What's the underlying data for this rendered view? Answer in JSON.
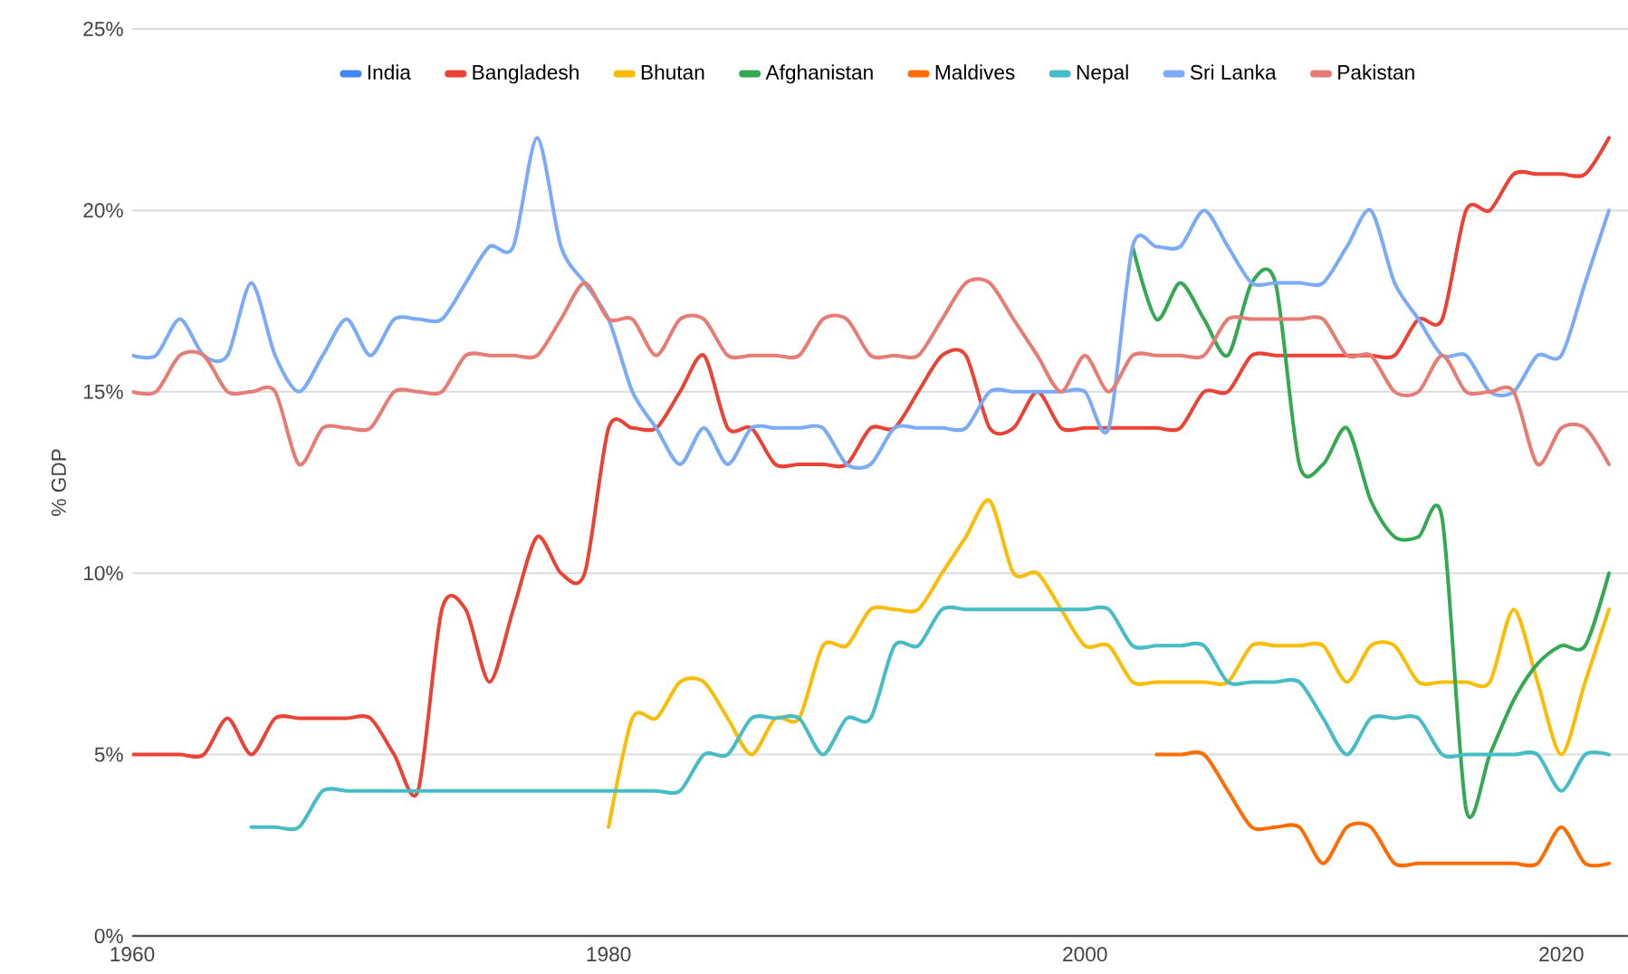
{
  "chart_data": {
    "type": "line",
    "ylabel": "% GDP",
    "x": [
      1960,
      1961,
      1962,
      1963,
      1964,
      1965,
      1966,
      1967,
      1968,
      1969,
      1970,
      1971,
      1972,
      1973,
      1974,
      1975,
      1976,
      1977,
      1978,
      1979,
      1980,
      1981,
      1982,
      1983,
      1984,
      1985,
      1986,
      1987,
      1988,
      1989,
      1990,
      1991,
      1992,
      1993,
      1994,
      1995,
      1996,
      1997,
      1998,
      1999,
      2000,
      2001,
      2002,
      2003,
      2004,
      2005,
      2006,
      2007,
      2008,
      2009,
      2010,
      2011,
      2012,
      2013,
      2014,
      2015,
      2016,
      2017,
      2018,
      2019,
      2020,
      2021,
      2022
    ],
    "xlim": [
      1960,
      2022.8
    ],
    "xticks": [
      1960,
      1980,
      2000,
      2020
    ],
    "ylim": [
      0,
      25
    ],
    "yticks": [
      {
        "value": 0,
        "label": "0%"
      },
      {
        "value": 5,
        "label": "5%"
      },
      {
        "value": 10,
        "label": "10%"
      },
      {
        "value": 15,
        "label": "15%"
      },
      {
        "value": 20,
        "label": "20%"
      },
      {
        "value": 25,
        "label": "25%"
      }
    ],
    "grid": "y",
    "legend": "top",
    "series": [
      {
        "name": "India",
        "color": "#4285f4",
        "values": [
          null,
          null,
          null,
          null,
          null,
          null,
          null,
          null,
          null,
          null,
          null,
          null,
          null,
          null,
          null,
          null,
          null,
          null,
          null,
          null,
          null,
          null,
          null,
          null,
          null,
          null,
          null,
          null,
          null,
          null,
          null,
          null,
          null,
          null,
          null,
          null,
          null,
          null,
          null,
          null,
          null,
          null,
          null,
          null,
          null,
          null,
          null,
          null,
          null,
          null,
          null,
          null,
          null,
          null,
          null,
          null,
          null,
          null,
          null,
          null,
          null,
          null,
          null
        ]
      },
      {
        "name": "Bangladesh",
        "color": "#ea4335",
        "values": [
          5,
          5,
          5,
          5,
          6,
          5,
          6,
          6,
          6,
          6,
          6,
          5,
          4,
          9,
          9,
          7,
          9,
          11,
          10,
          10,
          14,
          14,
          14,
          15,
          16,
          14,
          14,
          13,
          13,
          13,
          13,
          14,
          14,
          15,
          16,
          16,
          14,
          14,
          15,
          14,
          14,
          14,
          14,
          14,
          14,
          15,
          15,
          16,
          16,
          16,
          16,
          16,
          16,
          16,
          17,
          17,
          20,
          20,
          21,
          21,
          21,
          21,
          22
        ]
      },
      {
        "name": "Bhutan",
        "color": "#fbbc04",
        "values": [
          null,
          null,
          null,
          null,
          null,
          null,
          null,
          null,
          null,
          null,
          null,
          null,
          null,
          null,
          null,
          null,
          null,
          null,
          null,
          null,
          3,
          6,
          6,
          7,
          7,
          6,
          5,
          6,
          6,
          8,
          8,
          9,
          9,
          9,
          10,
          11,
          12,
          10,
          10,
          9,
          8,
          8,
          7,
          7,
          7,
          7,
          7,
          8,
          8,
          8,
          8,
          7,
          8,
          8,
          7,
          7,
          7,
          7,
          9,
          7,
          5,
          7,
          9
        ]
      },
      {
        "name": "Afghanistan",
        "color": "#34a853",
        "values": [
          null,
          null,
          null,
          null,
          null,
          null,
          null,
          null,
          null,
          null,
          null,
          null,
          null,
          null,
          null,
          null,
          null,
          null,
          null,
          null,
          null,
          null,
          null,
          null,
          null,
          null,
          null,
          null,
          null,
          null,
          null,
          null,
          null,
          null,
          null,
          null,
          null,
          null,
          null,
          null,
          null,
          null,
          19,
          17,
          18,
          17,
          16,
          18,
          18,
          13,
          13,
          14,
          12,
          11,
          11,
          11.5,
          3.5,
          5,
          6.5,
          7.5,
          8,
          8,
          10
        ]
      },
      {
        "name": "Maldives",
        "color": "#ff6d01",
        "values": [
          null,
          null,
          null,
          null,
          null,
          null,
          null,
          null,
          null,
          null,
          null,
          null,
          null,
          null,
          null,
          null,
          null,
          null,
          null,
          null,
          null,
          null,
          null,
          null,
          null,
          null,
          null,
          null,
          null,
          null,
          null,
          null,
          null,
          null,
          null,
          null,
          null,
          null,
          null,
          null,
          null,
          null,
          null,
          5,
          5,
          5,
          4,
          3,
          3,
          3,
          2,
          3,
          3,
          2,
          2,
          2,
          2,
          2,
          2,
          2,
          3,
          2,
          2
        ]
      },
      {
        "name": "Nepal",
        "color": "#46bdc6",
        "values": [
          null,
          null,
          null,
          null,
          null,
          3,
          3,
          3,
          4,
          4,
          4,
          4,
          4,
          4,
          4,
          4,
          4,
          4,
          4,
          4,
          4,
          4,
          4,
          4,
          5,
          5,
          6,
          6,
          6,
          5,
          6,
          6,
          8,
          8,
          9,
          9,
          9,
          9,
          9,
          9,
          9,
          9,
          8,
          8,
          8,
          8,
          7,
          7,
          7,
          7,
          6,
          5,
          6,
          6,
          6,
          5,
          5,
          5,
          5,
          5,
          4,
          5,
          5
        ]
      },
      {
        "name": "Sri Lanka",
        "color": "#7baaf7",
        "values": [
          16,
          16,
          17,
          16,
          16,
          18,
          16,
          15,
          16,
          17,
          16,
          17,
          17,
          17,
          18,
          19,
          19,
          22,
          19,
          18,
          17,
          15,
          14,
          13,
          14,
          13,
          14,
          14,
          14,
          14,
          13,
          13,
          14,
          14,
          14,
          14,
          15,
          15,
          15,
          15,
          15,
          14,
          19,
          19,
          19,
          20,
          19,
          18,
          18,
          18,
          18,
          19,
          20,
          18,
          17,
          16,
          16,
          15,
          15,
          16,
          16,
          18,
          20
        ]
      },
      {
        "name": "Pakistan",
        "color": "#e67c73",
        "values": [
          15,
          15,
          16,
          16,
          15,
          15,
          15,
          13,
          14,
          14,
          14,
          15,
          15,
          15,
          16,
          16,
          16,
          16,
          17,
          18,
          17,
          17,
          16,
          17,
          17,
          16,
          16,
          16,
          16,
          17,
          17,
          16,
          16,
          16,
          17,
          18,
          18,
          17,
          16,
          15,
          16,
          15,
          16,
          16,
          16,
          16,
          17,
          17,
          17,
          17,
          17,
          16,
          16,
          15,
          15,
          16,
          15,
          15,
          15,
          13,
          14,
          14,
          13
        ]
      }
    ]
  }
}
